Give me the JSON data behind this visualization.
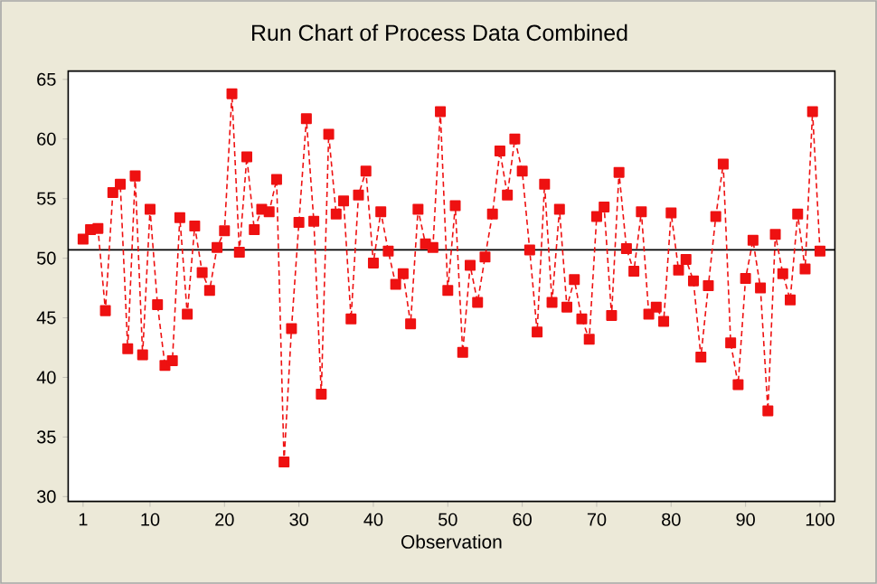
{
  "chart_data": {
    "type": "line",
    "title": "Run Chart of Process Data Combined",
    "xlabel": "Observation",
    "x": [
      1,
      2,
      3,
      4,
      5,
      6,
      7,
      8,
      9,
      10,
      11,
      12,
      13,
      14,
      15,
      16,
      17,
      18,
      19,
      20,
      21,
      22,
      23,
      24,
      25,
      26,
      27,
      28,
      29,
      30,
      31,
      32,
      33,
      34,
      35,
      36,
      37,
      38,
      39,
      40,
      41,
      42,
      43,
      44,
      45,
      46,
      47,
      48,
      49,
      50,
      51,
      52,
      53,
      54,
      55,
      56,
      57,
      58,
      59,
      60,
      61,
      62,
      63,
      64,
      65,
      66,
      67,
      68,
      69,
      70,
      71,
      72,
      73,
      74,
      75,
      76,
      77,
      78,
      79,
      80,
      81,
      82,
      83,
      84,
      85,
      86,
      87,
      88,
      89,
      90,
      91,
      92,
      93,
      94,
      95,
      96,
      97,
      98,
      99,
      100
    ],
    "values": [
      51.6,
      52.4,
      52.5,
      45.6,
      55.5,
      56.2,
      42.4,
      56.9,
      41.9,
      54.1,
      46.1,
      41.0,
      41.4,
      53.4,
      45.3,
      52.7,
      48.8,
      47.3,
      50.9,
      52.3,
      63.8,
      50.5,
      58.5,
      52.4,
      54.1,
      53.9,
      56.6,
      32.9,
      44.1,
      53.0,
      61.7,
      53.1,
      38.6,
      60.4,
      53.7,
      54.8,
      44.9,
      55.3,
      57.3,
      49.6,
      53.9,
      50.6,
      47.8,
      48.7,
      44.5,
      54.1,
      51.2,
      50.9,
      62.3,
      47.3,
      54.4,
      42.1,
      49.4,
      46.3,
      50.1,
      53.7,
      59.0,
      55.3,
      60.0,
      57.3,
      50.7,
      43.8,
      56.2,
      46.3,
      54.1,
      45.9,
      48.2,
      44.9,
      43.2,
      53.5,
      54.3,
      45.2,
      57.2,
      50.8,
      48.9,
      53.9,
      45.3,
      45.9,
      44.7,
      53.8,
      49.0,
      49.9,
      48.1,
      41.7,
      47.7,
      53.5,
      57.9,
      42.9,
      39.4,
      48.3,
      51.5,
      47.5,
      37.2,
      52.0,
      48.7,
      46.5,
      53.7,
      49.1,
      62.3,
      50.6
    ],
    "color": "#ee1111",
    "marker": "square",
    "line_style": "dashed",
    "grid": false,
    "xlim": [
      -1,
      102
    ],
    "xticks": [
      1,
      10,
      20,
      30,
      40,
      50,
      60,
      70,
      80,
      90,
      100
    ],
    "ylim": [
      29.6,
      65.7
    ],
    "yticks": [
      30,
      35,
      40,
      45,
      50,
      55,
      60,
      65
    ],
    "ref_lines": [
      {
        "axis": "y",
        "value": 50.7,
        "color": "#000000",
        "line_style": "solid"
      }
    ]
  }
}
